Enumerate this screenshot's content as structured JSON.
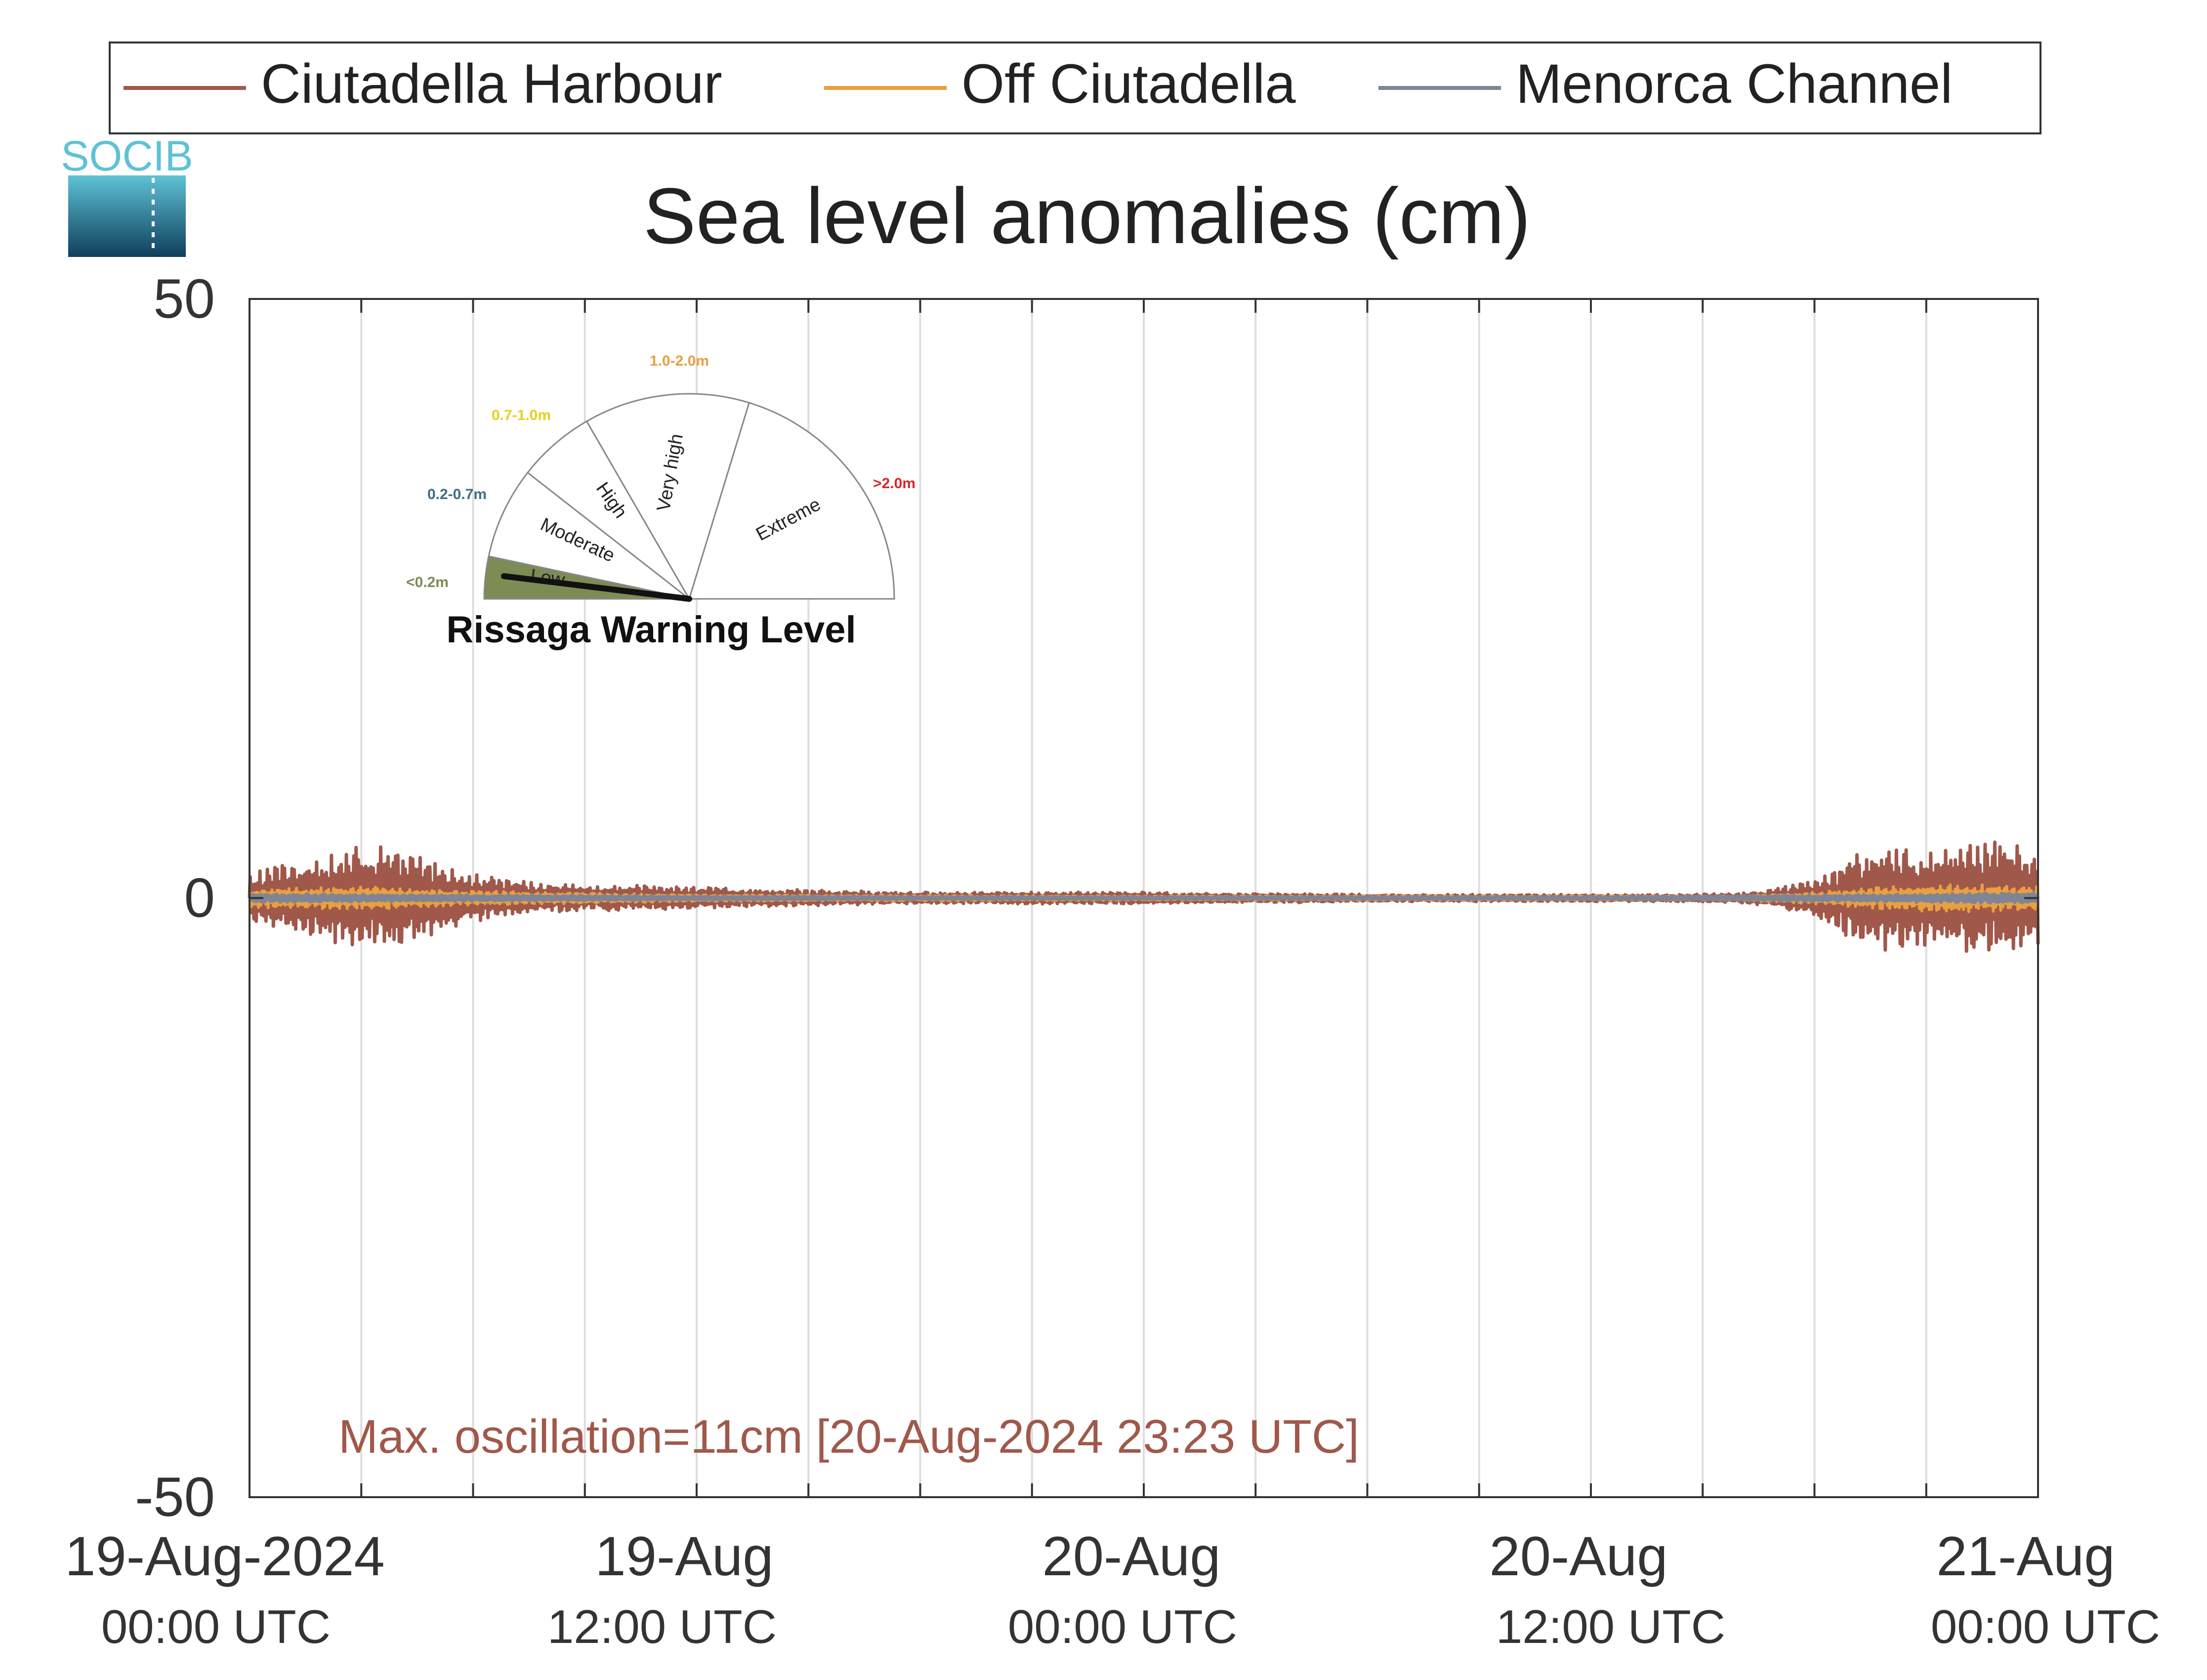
{
  "chart_data": {
    "type": "line",
    "title": "Sea level anomalies (cm)",
    "ylim": [
      -50,
      50
    ],
    "yticks": [
      {
        "value": 50,
        "label": "50"
      },
      {
        "value": 0,
        "label": "0"
      },
      {
        "value": -50,
        "label": "-50"
      }
    ],
    "xlim_hours": [
      0,
      48
    ],
    "x_major_ticks": [
      {
        "hour": 0,
        "line1": "19-Aug-2024",
        "line2": "00:00 UTC"
      },
      {
        "hour": 12,
        "line1": "19-Aug",
        "line2": "12:00 UTC"
      },
      {
        "hour": 24,
        "line1": "20-Aug",
        "line2": "00:00 UTC"
      },
      {
        "hour": 36,
        "line1": "20-Aug",
        "line2": "12:00 UTC"
      },
      {
        "hour": 48,
        "line1": "21-Aug",
        "line2": "00:00 UTC"
      }
    ],
    "grid": "vertical every 3 hours",
    "legend_position": "top",
    "series": [
      {
        "name": "Ciutadella Harbour",
        "color": "#a0584a",
        "envelope": [
          [
            0,
            2
          ],
          [
            1,
            3
          ],
          [
            2,
            3.5
          ],
          [
            3,
            4.5
          ],
          [
            4,
            4.2
          ],
          [
            5,
            3.2
          ],
          [
            6,
            2
          ],
          [
            8,
            1.2
          ],
          [
            10,
            1.1
          ],
          [
            12,
            0.9
          ],
          [
            14,
            0.8
          ],
          [
            16,
            0.6
          ],
          [
            18,
            0.5
          ],
          [
            20,
            0.5
          ],
          [
            22,
            0.5
          ],
          [
            24,
            0.5
          ],
          [
            26,
            0.4
          ],
          [
            28,
            0.4
          ],
          [
            30,
            0.3
          ],
          [
            32,
            0.3
          ],
          [
            34,
            0.3
          ],
          [
            36,
            0.3
          ],
          [
            38,
            0.3
          ],
          [
            40,
            0.4
          ],
          [
            41,
            0.8
          ],
          [
            42,
            1.6
          ],
          [
            43,
            3.5
          ],
          [
            44,
            4.5
          ],
          [
            45,
            4.0
          ],
          [
            46,
            4.5
          ],
          [
            47,
            5.0
          ],
          [
            48,
            4.0
          ]
        ]
      },
      {
        "name": "Off Ciutadella",
        "color": "#e8a040",
        "envelope": [
          [
            0,
            0.8
          ],
          [
            3,
            1.0
          ],
          [
            6,
            0.6
          ],
          [
            12,
            0.3
          ],
          [
            24,
            0.2
          ],
          [
            36,
            0.2
          ],
          [
            40,
            0.2
          ],
          [
            42,
            0.5
          ],
          [
            44,
            1.0
          ],
          [
            46,
            1.2
          ],
          [
            48,
            1.0
          ]
        ]
      },
      {
        "name": "Menorca Channel",
        "color": "#7f8496",
        "envelope": [
          [
            0,
            0.4
          ],
          [
            6,
            0.3
          ],
          [
            12,
            0.2
          ],
          [
            24,
            0.15
          ],
          [
            36,
            0.15
          ],
          [
            42,
            0.3
          ],
          [
            48,
            0.5
          ]
        ]
      }
    ],
    "annotation": "Max. oscillation=11cm [20-Aug-2024 23:23 UTC]",
    "annotation_color": "#a0584a"
  },
  "logo": {
    "text": "SOCIB",
    "colors": [
      "#5ec2d6",
      "#0f3e5c"
    ]
  },
  "gauge": {
    "title": "Rissaga Warning Level",
    "needle_level": "Low",
    "segments": [
      {
        "label": "Low",
        "range": "<0.2m",
        "color": "#7d8b55"
      },
      {
        "label": "Moderate",
        "range": "0.2-0.7m",
        "color": "#3f6e86"
      },
      {
        "label": "High",
        "range": "0.7-1.0m",
        "color": "#e3d21f"
      },
      {
        "label": "Very high",
        "range": "1.0-2.0m",
        "color": "#e8a040"
      },
      {
        "label": "Extreme",
        "range": ">2.0m",
        "color": "#d6282c"
      }
    ]
  }
}
